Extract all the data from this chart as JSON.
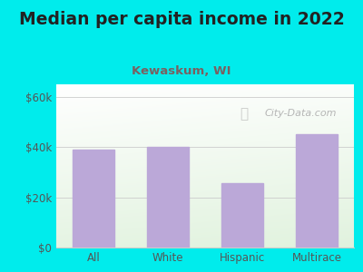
{
  "title": "Median per capita income in 2022",
  "subtitle": "Kewaskum, WI",
  "categories": [
    "All",
    "White",
    "Hispanic",
    "Multirace"
  ],
  "values": [
    39000,
    40200,
    25500,
    45000
  ],
  "bar_color": "#BBA8D8",
  "title_color": "#222222",
  "subtitle_color": "#7A6060",
  "outer_bg_color": "#00ECEC",
  "plot_bg_top_color": "#FFFFFF",
  "plot_bg_bottom_color": "#D4EDD0",
  "yticks": [
    0,
    20000,
    40000,
    60000
  ],
  "ytick_labels": [
    "$0",
    "$20k",
    "$40k",
    "$60k"
  ],
  "ylim": [
    0,
    65000
  ],
  "watermark": "City-Data.com",
  "watermark_color": "#AAAAAA",
  "grid_color": "#CCCCCC",
  "axis_label_color": "#555555",
  "title_fontsize": 13.5,
  "subtitle_fontsize": 9.5,
  "tick_fontsize": 8.5,
  "bar_width": 0.55
}
